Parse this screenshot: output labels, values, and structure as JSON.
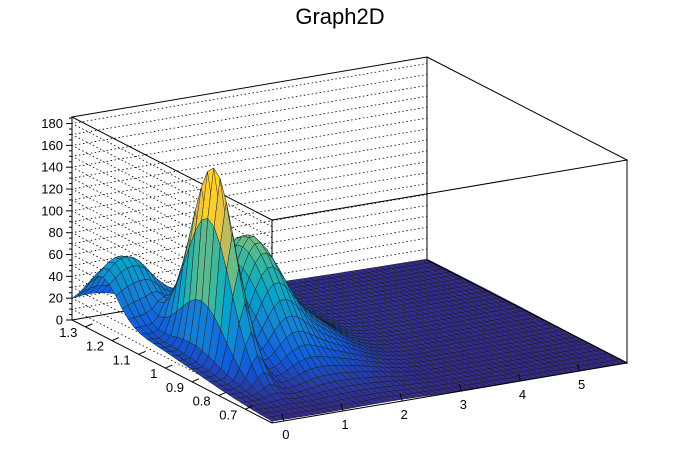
{
  "chart_data": {
    "type": "surface",
    "title": "Graph2D",
    "xlabel": "",
    "ylabel": "",
    "zlabel": "",
    "xlim": [
      -0.2,
      5.8
    ],
    "ylim": [
      0.6,
      1.35
    ],
    "zlim": [
      0,
      186
    ],
    "x_ticks": [
      "0",
      "1",
      "2",
      "3",
      "4",
      "5"
    ],
    "y_ticks": [
      "1.3",
      "1.2",
      "1.1",
      "1",
      "0.9",
      "0.8",
      "0.7"
    ],
    "z_ticks": [
      "180",
      "160",
      "140",
      "120",
      "100",
      "80",
      "60",
      "40",
      "20",
      "0"
    ],
    "grid": true,
    "palette": "kBird (blue-green-yellow)",
    "colors": [
      "#352a87",
      "#0f5cdd",
      "#1481d6",
      "#06a4ca",
      "#2eb7a4",
      "#87bf77",
      "#d1bb59",
      "#fec832",
      "#f9fb0e"
    ],
    "peaks": [
      {
        "description": "narrow ridge near x=0.4, y=0.95",
        "x": 0.4,
        "y": 0.95,
        "z": 170
      },
      {
        "description": "broad hump near x=1.2, y=1.0",
        "x": 1.2,
        "y": 1.0,
        "z": 82
      }
    ]
  }
}
